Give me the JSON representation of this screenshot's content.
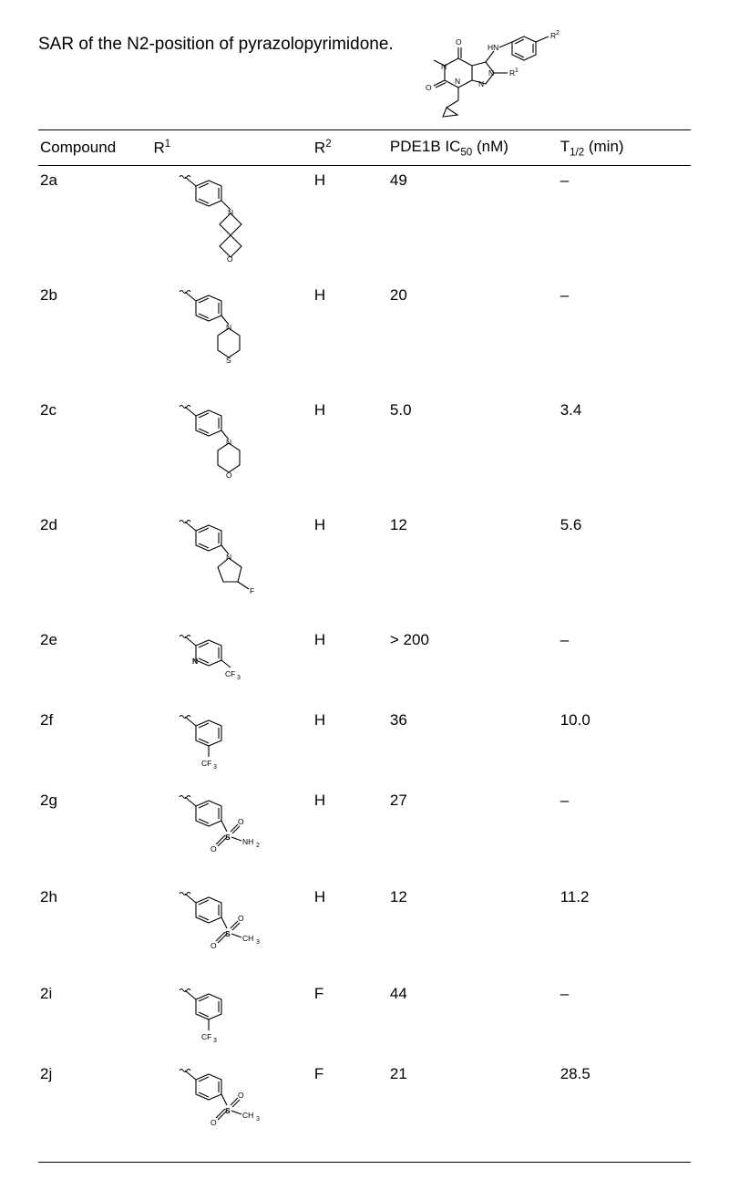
{
  "title": "SAR of the N2-position of pyrazolopyrimidone.",
  "header_struct_labels": {
    "R1": "R¹",
    "R2": "R²",
    "HN": "HN",
    "N": "N",
    "O": "O"
  },
  "columns": {
    "compound": "Compound",
    "r1": "R",
    "r1_sup": "1",
    "r2": "R",
    "r2_sup": "2",
    "ic50_pre": "PDE1B IC",
    "ic50_sub": "50",
    "ic50_post": " (nM)",
    "thalf_pre": "T",
    "thalf_sub": "1/2",
    "thalf_post": "  (min)"
  },
  "rows": [
    {
      "compound": "2a",
      "r1_type": "spirooxetane",
      "r2": "H",
      "ic50": "49",
      "thalf": "–"
    },
    {
      "compound": "2b",
      "r1_type": "thiomorpholine",
      "r2": "H",
      "ic50": "20",
      "thalf": "–"
    },
    {
      "compound": "2c",
      "r1_type": "morpholine",
      "r2": "H",
      "ic50": "5.0",
      "thalf": "3.4"
    },
    {
      "compound": "2d",
      "r1_type": "fluoropyrrolidine",
      "r2": "H",
      "ic50": "12",
      "thalf": "5.6"
    },
    {
      "compound": "2e",
      "r1_type": "cf3pyridyl",
      "r2": "H",
      "ic50": "> 200",
      "thalf": "–"
    },
    {
      "compound": "2f",
      "r1_type": "cf3phenyl",
      "r2": "H",
      "ic50": "36",
      "thalf": "10.0"
    },
    {
      "compound": "2g",
      "r1_type": "so2nh2",
      "r2": "H",
      "ic50": "27",
      "thalf": "–"
    },
    {
      "compound": "2h",
      "r1_type": "so2ch3",
      "r2": "H",
      "ic50": "12",
      "thalf": "11.2"
    },
    {
      "compound": "2i",
      "r1_type": "cf3phenyl",
      "r2": "F",
      "ic50": "44",
      "thalf": "–"
    },
    {
      "compound": "2j",
      "r1_type": "so2ch3",
      "r2": "F",
      "ic50": "21",
      "thalf": "28.5"
    }
  ],
  "svg": {
    "stroke": "#000000",
    "stroke_width": 1.1,
    "label_fontsize": 8.5,
    "small_label_fontsize": 7,
    "text_color": "#000000",
    "background": "#ffffff"
  },
  "row_height": {
    "tall": 120,
    "normal": 100,
    "short": 82
  }
}
